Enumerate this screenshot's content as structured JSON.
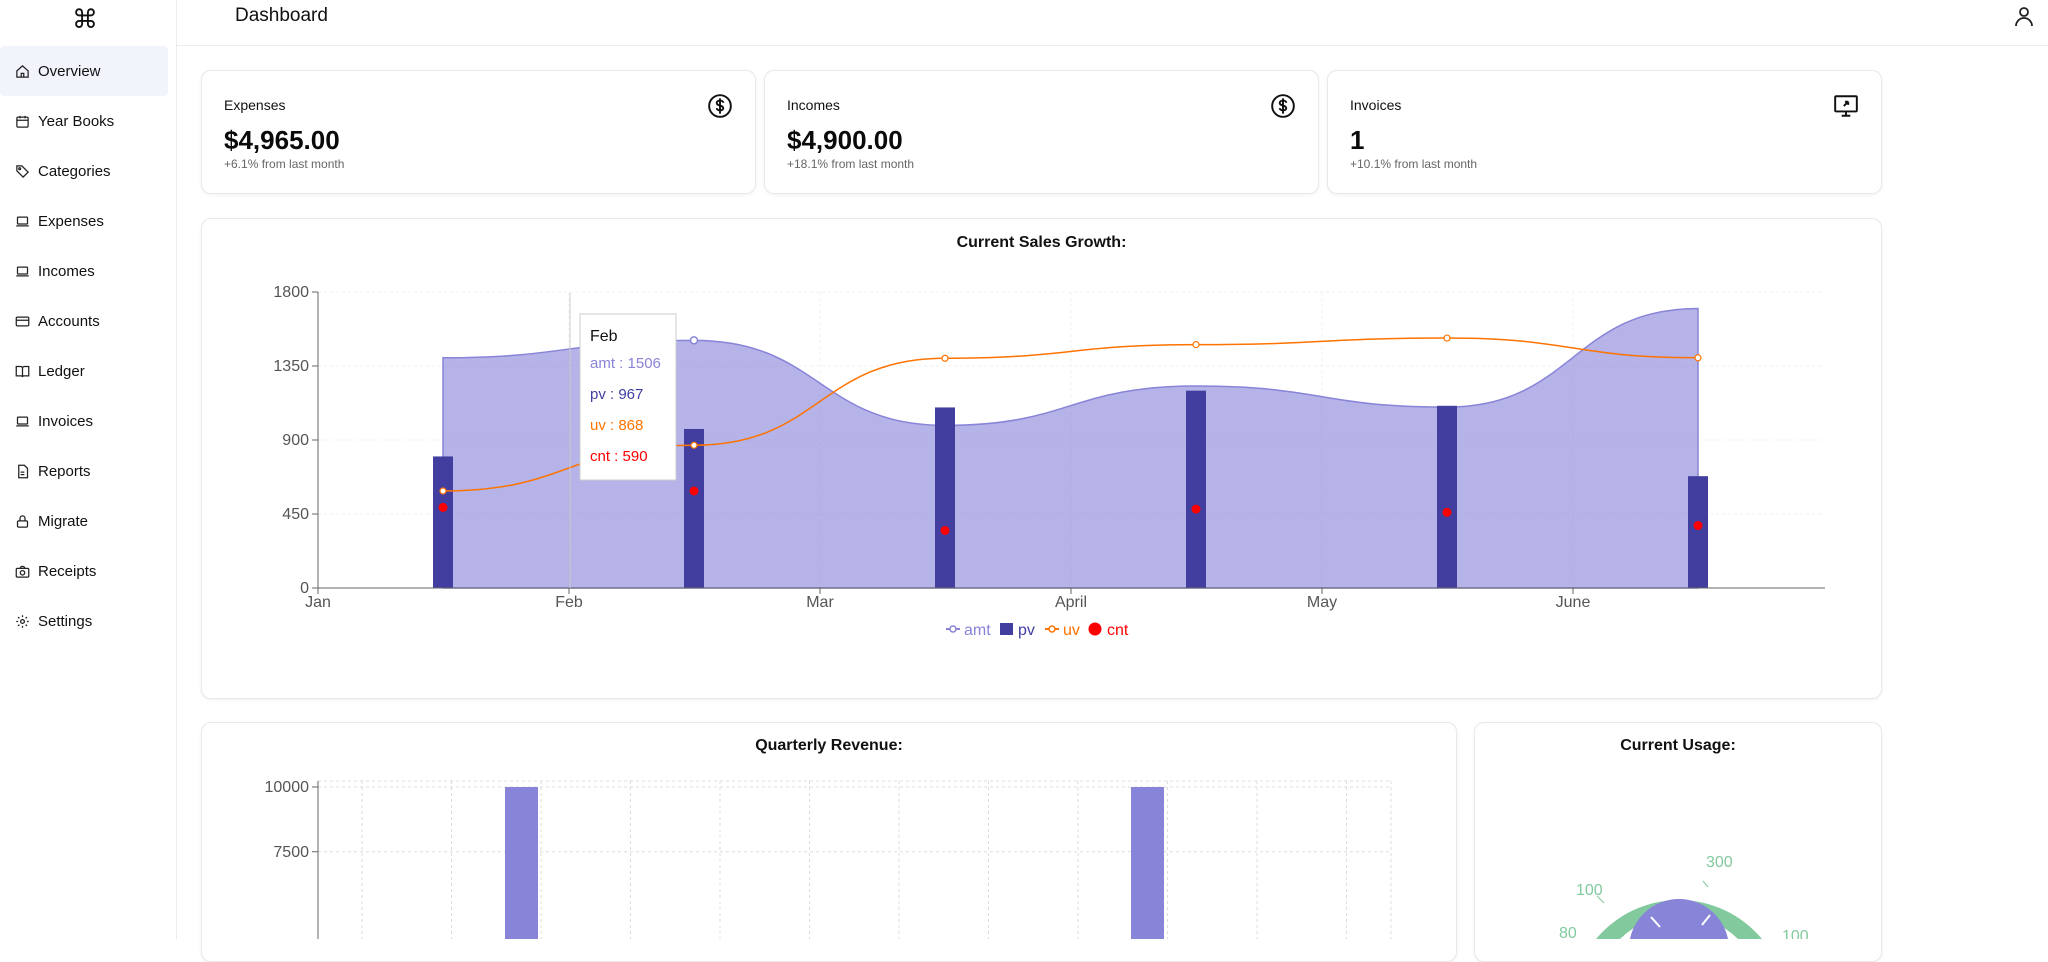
{
  "app": {
    "logo_glyph": "⌘",
    "page_title": "Dashboard"
  },
  "sidebar": {
    "items": [
      {
        "label": "Overview",
        "icon": "home-icon",
        "active": true
      },
      {
        "label": "Year Books",
        "icon": "calendar-icon"
      },
      {
        "label": "Categories",
        "icon": "tag-icon"
      },
      {
        "label": "Expenses",
        "icon": "laptop-icon"
      },
      {
        "label": "Incomes",
        "icon": "laptop-icon"
      },
      {
        "label": "Accounts",
        "icon": "credit-card-icon"
      },
      {
        "label": "Ledger",
        "icon": "book-icon"
      },
      {
        "label": "Invoices",
        "icon": "laptop-icon"
      },
      {
        "label": "Reports",
        "icon": "file-icon"
      },
      {
        "label": "Migrate",
        "icon": "lock-icon"
      },
      {
        "label": "Receipts",
        "icon": "camera-icon"
      },
      {
        "label": "Settings",
        "icon": "gear-icon"
      }
    ]
  },
  "stats": [
    {
      "label": "Expenses",
      "value": "$4,965.00",
      "sub": "+6.1% from last month",
      "icon": "dollar-circle-icon"
    },
    {
      "label": "Incomes",
      "value": "$4,900.00",
      "sub": "+18.1% from last month",
      "icon": "dollar-circle-icon"
    },
    {
      "label": "Invoices",
      "value": "1",
      "sub": "+10.1% from last month",
      "icon": "monitor-share-icon"
    }
  ],
  "sales_chart": {
    "title": "Current Sales Growth:",
    "tooltip": {
      "label": "Feb",
      "amt": "amt : 1506",
      "pv": "pv : 967",
      "uv": "uv : 868",
      "cnt": "cnt : 590"
    },
    "legend": [
      "amt",
      "pv",
      "uv",
      "cnt"
    ]
  },
  "revenue_chart": {
    "title": "Quarterly Revenue:"
  },
  "usage_chart": {
    "title": "Current Usage:",
    "labels": [
      "300",
      "100",
      "80",
      "100"
    ]
  },
  "colors": {
    "amt": "#8884d8",
    "pv": "#413ea0",
    "uv": "#ff7300",
    "cnt": "#ff0000",
    "usage": "#82ca9d",
    "revenue": "#8884d8"
  },
  "chart_data": [
    {
      "type": "composed",
      "title": "Current Sales Growth:",
      "x_ticks": [
        "Jan",
        "Feb",
        "Mar",
        "April",
        "May",
        "June"
      ],
      "categories": [
        "Jan",
        "Feb",
        "Mar",
        "April",
        "May",
        "June"
      ],
      "y_ticks": [
        "0",
        "450",
        "900",
        "1350",
        "1800"
      ],
      "ylim": [
        0,
        1800
      ],
      "series": [
        {
          "name": "amt",
          "kind": "area",
          "values": [
            1400,
            1506,
            989,
            1228,
            1100,
            1700
          ]
        },
        {
          "name": "pv",
          "kind": "bar",
          "values": [
            800,
            967,
            1098,
            1200,
            1108,
            680
          ]
        },
        {
          "name": "uv",
          "kind": "line",
          "values": [
            590,
            868,
            1397,
            1480,
            1520,
            1400
          ]
        },
        {
          "name": "cnt",
          "kind": "scatter",
          "values": [
            490,
            590,
            350,
            480,
            460,
            380
          ]
        }
      ],
      "legend_position": "bottom"
    },
    {
      "type": "bar",
      "title": "Quarterly Revenue:",
      "y_ticks": [
        "10000",
        "7500"
      ],
      "values": [
        10000,
        10000
      ],
      "grid": true
    },
    {
      "type": "pie",
      "title": "Current Usage:",
      "labels": [
        "300",
        "100",
        "80",
        "100"
      ]
    }
  ]
}
